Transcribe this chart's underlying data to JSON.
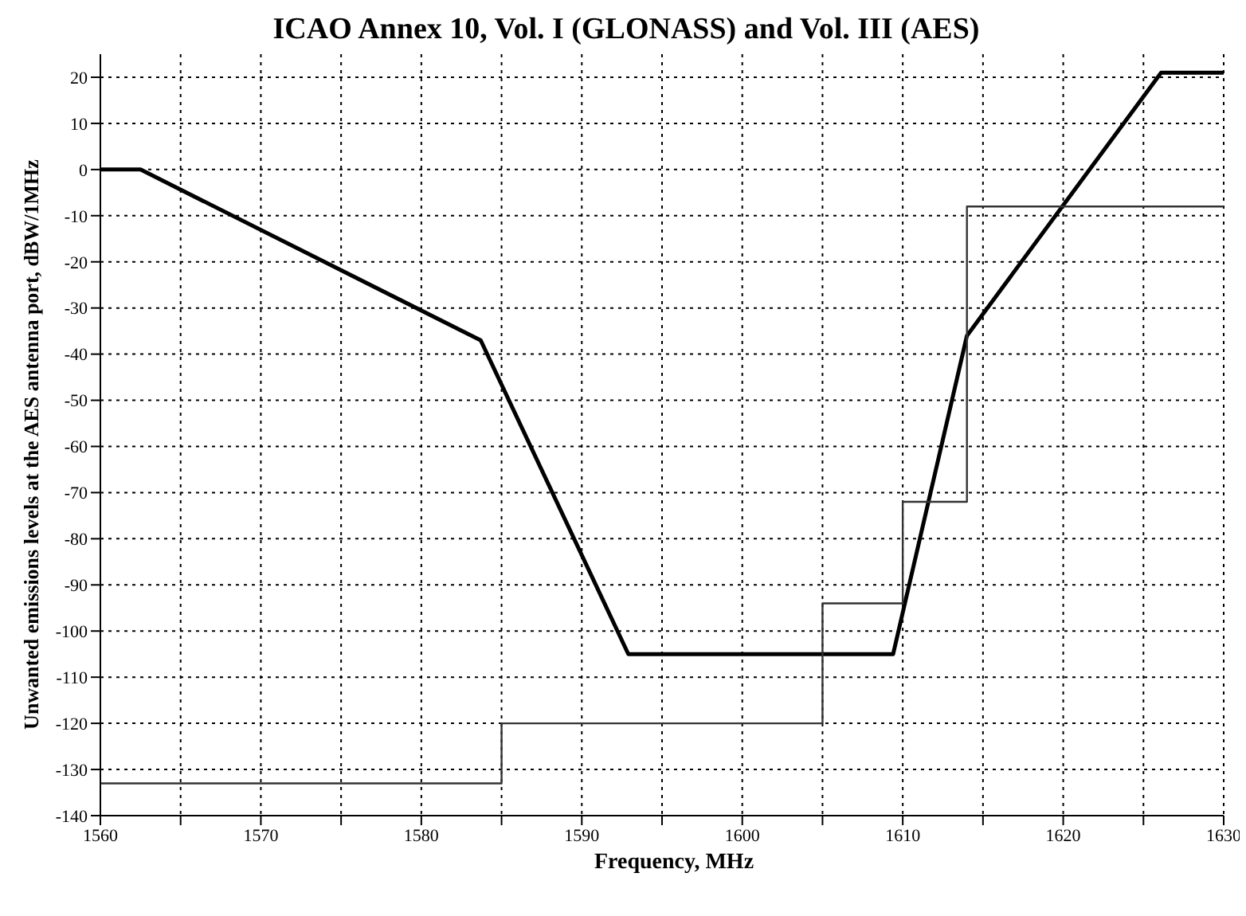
{
  "chart_data": {
    "type": "line",
    "title": "ICAO Annex 10, Vol. I (GLONASS) and Vol. III (AES)",
    "xlabel": "Frequency, MHz",
    "ylabel": "Unwanted emissions levels at the AES antenna port, dBW/1MHz",
    "xlim": [
      1560,
      1630
    ],
    "ylim": [
      -140,
      25
    ],
    "xticks": [
      1560,
      {
        "value": 1565,
        "label": null
      },
      1570,
      {
        "value": 1575,
        "label": null
      },
      1580,
      {
        "value": 1585,
        "label": null
      },
      1590,
      {
        "value": 1595,
        "label": null
      },
      1600,
      {
        "value": 1605,
        "label": null
      },
      1610,
      {
        "value": 1615,
        "label": null
      },
      1620,
      {
        "value": 1625,
        "label": null
      },
      1630
    ],
    "yticks": [
      -140,
      -130,
      -120,
      -110,
      -100,
      -90,
      -80,
      -70,
      -60,
      -50,
      -40,
      -30,
      -20,
      -10,
      0,
      10,
      20
    ],
    "grid": true,
    "marker": "none",
    "legend": false,
    "series": [
      {
        "color": "#000000",
        "x": [
          1560,
          1562.5,
          1583.7,
          1592.9,
          1609.4,
          1614,
          1626.1,
          1630
        ],
        "values": [
          0,
          0,
          -37,
          -105,
          -105,
          -36,
          21,
          21
        ]
      },
      {
        "color": "#333333",
        "x": [
          1560,
          1585,
          1585,
          1605,
          1605,
          1610,
          1610,
          1614,
          1614,
          1630
        ],
        "values": [
          -133,
          -133,
          -120,
          -120,
          -94,
          -94,
          -72,
          -72,
          -8,
          -8
        ]
      }
    ]
  }
}
